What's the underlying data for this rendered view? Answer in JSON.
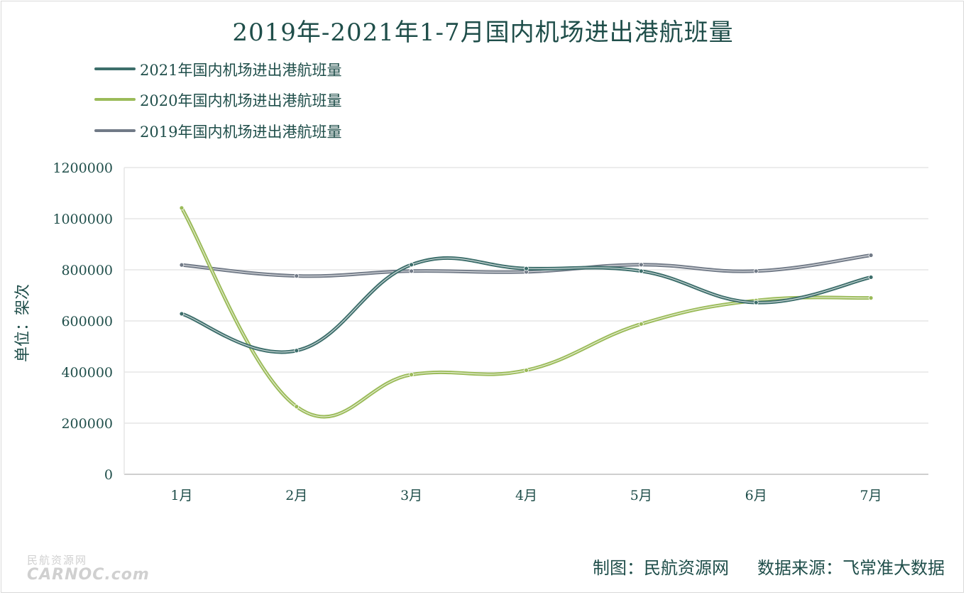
{
  "chart_data": {
    "type": "line",
    "title": "2019年-2021年1-7月国内机场进出港航班量",
    "ylabel": "单位：架次",
    "xlabel": "",
    "categories": [
      "1月",
      "2月",
      "3月",
      "4月",
      "5月",
      "6月",
      "7月"
    ],
    "ylim": [
      0,
      1200000
    ],
    "yticks": [
      "0",
      "200000",
      "400000",
      "600000",
      "800000",
      "1000000",
      "1200000"
    ],
    "grid": true,
    "legend_position": "top-left",
    "series": [
      {
        "name": "2021年国内机场进出港航班量",
        "color": "#3d6e6b",
        "values": [
          628000,
          484000,
          820000,
          805000,
          795000,
          672000,
          771000
        ]
      },
      {
        "name": "2020年国内机场进出港航班量",
        "color": "#9bbb59",
        "values": [
          1042000,
          265000,
          390000,
          407000,
          588000,
          680000,
          690000
        ]
      },
      {
        "name": "2019年国内机场进出港航班量",
        "color": "#717a87",
        "values": [
          819000,
          776000,
          795000,
          792000,
          820000,
          795000,
          857000
        ]
      }
    ]
  },
  "footer": {
    "maker": "制图：民航资源网",
    "source": "数据来源：飞常准大数据"
  },
  "watermark": {
    "line1": "民航资源网",
    "line2": "CARNOC.com"
  }
}
